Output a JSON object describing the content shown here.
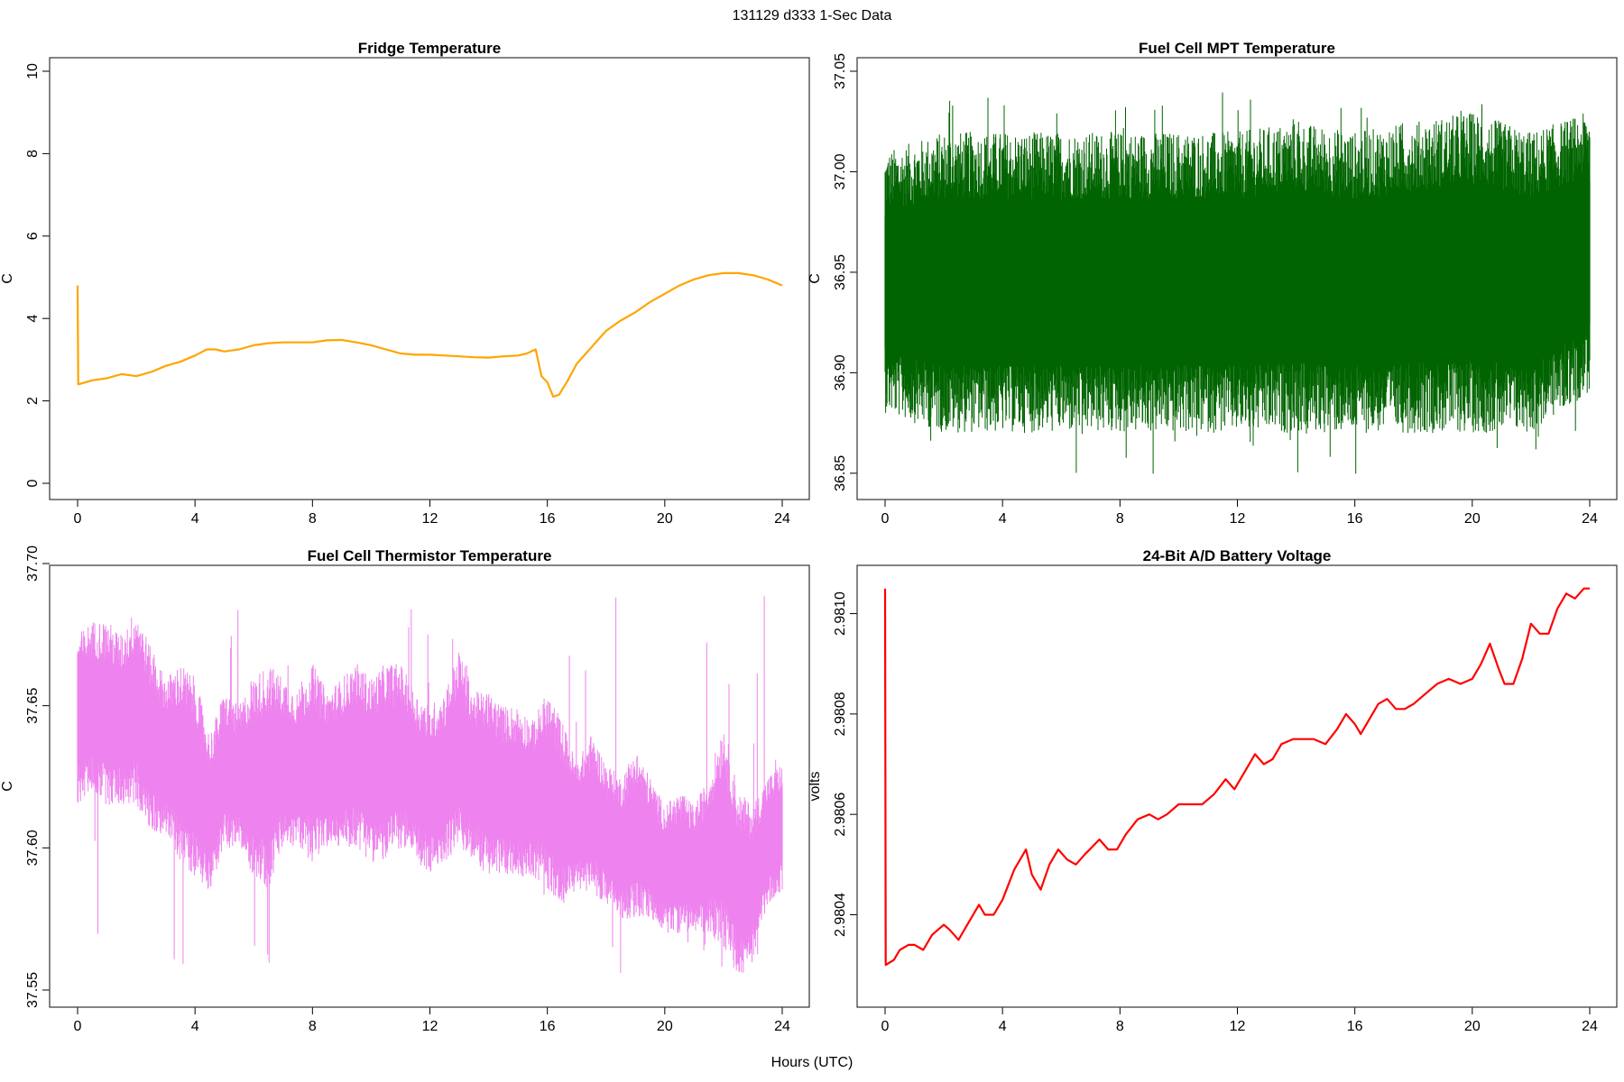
{
  "figure": {
    "title": "131129   d333   1-Sec Data",
    "xlabel": "Hours (UTC)"
  },
  "chart_data": [
    {
      "type": "line",
      "title": "Fridge Temperature",
      "xlabel": "",
      "ylabel": "C",
      "xlim": [
        0,
        24
      ],
      "ylim": [
        0,
        10
      ],
      "xticks": [
        "0",
        "4",
        "8",
        "12",
        "16",
        "20",
        "24"
      ],
      "yticks": [
        "0",
        "2",
        "4",
        "6",
        "8",
        "10"
      ],
      "color": "#ffa500",
      "series": [
        {
          "name": "Fridge Temperature",
          "x": [
            0,
            0.02,
            0.5,
            1.0,
            1.5,
            2.0,
            2.5,
            3.0,
            3.5,
            4.0,
            4.4,
            4.7,
            5.0,
            5.5,
            6.0,
            6.5,
            7.0,
            8.0,
            8.5,
            9.0,
            9.5,
            10.0,
            10.5,
            11.0,
            11.5,
            12.0,
            12.5,
            13.0,
            13.5,
            14.0,
            14.5,
            15.0,
            15.3,
            15.6,
            15.8,
            16.0,
            16.2,
            16.4,
            16.7,
            17.0,
            17.5,
            18.0,
            18.5,
            19.0,
            19.5,
            20.0,
            20.5,
            21.0,
            21.5,
            22.0,
            22.5,
            23.0,
            23.5,
            24.0
          ],
          "values": [
            4.8,
            2.4,
            2.5,
            2.55,
            2.65,
            2.6,
            2.7,
            2.85,
            2.95,
            3.1,
            3.25,
            3.25,
            3.2,
            3.25,
            3.35,
            3.4,
            3.42,
            3.42,
            3.47,
            3.48,
            3.42,
            3.35,
            3.25,
            3.15,
            3.12,
            3.12,
            3.1,
            3.08,
            3.06,
            3.05,
            3.08,
            3.1,
            3.15,
            3.25,
            2.6,
            2.45,
            2.1,
            2.15,
            2.5,
            2.9,
            3.3,
            3.7,
            3.95,
            4.15,
            4.4,
            4.6,
            4.8,
            4.95,
            5.05,
            5.1,
            5.1,
            5.05,
            4.95,
            4.8
          ]
        }
      ]
    },
    {
      "type": "line",
      "title": "Fuel Cell MPT Temperature",
      "xlabel": "",
      "ylabel": "C",
      "xlim": [
        0,
        24
      ],
      "ylim": [
        36.845,
        37.05
      ],
      "xticks": [
        "0",
        "4",
        "8",
        "12",
        "16",
        "20",
        "24"
      ],
      "yticks": [
        "36.85",
        "36.90",
        "36.95",
        "37.00",
        "37.05"
      ],
      "color": "#006400",
      "band": {
        "center": 36.95,
        "inner_half_width": 0.03,
        "outer_half_width": 0.065
      },
      "series": [
        {
          "name": "MPT envelope",
          "x": [
            0,
            2,
            4,
            6,
            8,
            10,
            12,
            14,
            16,
            18,
            20,
            22,
            24
          ],
          "upper": [
            37.01,
            37.02,
            37.02,
            37.02,
            37.02,
            37.02,
            37.02,
            37.025,
            37.02,
            37.025,
            37.03,
            37.02,
            37.03
          ],
          "lower": [
            36.88,
            36.87,
            36.87,
            36.87,
            36.87,
            36.87,
            36.87,
            36.87,
            36.87,
            36.87,
            36.87,
            36.87,
            36.89
          ],
          "spikes_max": 37.045,
          "spikes_min": 36.847
        }
      ]
    },
    {
      "type": "line",
      "title": "Fuel Cell Thermistor Temperature",
      "xlabel": "",
      "ylabel": "C",
      "xlim": [
        0,
        24
      ],
      "ylim": [
        37.55,
        37.7
      ],
      "xticks": [
        "0",
        "4",
        "8",
        "12",
        "16",
        "20",
        "24"
      ],
      "yticks": [
        "37.55",
        "37.60",
        "37.65",
        "37.70"
      ],
      "color": "#ee82ee",
      "series": [
        {
          "name": "Thermistor envelope",
          "x": [
            0,
            0.5,
            1,
            1.5,
            2,
            2.5,
            3,
            3.5,
            4,
            4.5,
            5,
            5.5,
            6,
            6.5,
            7,
            7.5,
            8,
            8.5,
            9,
            9.5,
            10,
            10.5,
            11,
            11.5,
            12,
            12.5,
            13,
            13.5,
            14,
            14.5,
            15,
            15.5,
            16,
            16.5,
            17,
            17.5,
            18,
            18.5,
            19,
            19.5,
            20,
            20.5,
            21,
            21.5,
            22,
            22.5,
            23,
            23.5,
            24
          ],
          "upper": [
            37.675,
            37.68,
            37.68,
            37.675,
            37.685,
            37.67,
            37.66,
            37.665,
            37.66,
            37.64,
            37.655,
            37.65,
            37.66,
            37.665,
            37.66,
            37.655,
            37.665,
            37.655,
            37.66,
            37.665,
            37.66,
            37.665,
            37.665,
            37.655,
            37.65,
            37.655,
            37.67,
            37.655,
            37.655,
            37.65,
            37.65,
            37.645,
            37.655,
            37.645,
            37.63,
            37.64,
            37.63,
            37.625,
            37.635,
            37.625,
            37.615,
            37.62,
            37.615,
            37.625,
            37.645,
            37.62,
            37.615,
            37.625,
            37.63
          ],
          "lower": [
            37.615,
            37.62,
            37.615,
            37.615,
            37.615,
            37.605,
            37.605,
            37.595,
            37.59,
            37.585,
            37.6,
            37.6,
            37.59,
            37.585,
            37.6,
            37.6,
            37.595,
            37.6,
            37.6,
            37.6,
            37.595,
            37.595,
            37.6,
            37.595,
            37.59,
            37.595,
            37.6,
            37.595,
            37.59,
            37.59,
            37.59,
            37.59,
            37.585,
            37.58,
            37.585,
            37.585,
            37.58,
            37.575,
            37.575,
            37.575,
            37.57,
            37.57,
            37.57,
            37.57,
            37.565,
            37.555,
            37.56,
            37.58,
            37.585
          ],
          "spikes_max": 37.697,
          "spikes_min": 37.553
        }
      ]
    },
    {
      "type": "line",
      "title": "24-Bit A/D Battery Voltage",
      "xlabel": "",
      "ylabel": "volts",
      "xlim": [
        0,
        24
      ],
      "ylim": [
        2.98025,
        2.98108
      ],
      "xticks": [
        "0",
        "4",
        "8",
        "12",
        "16",
        "20",
        "24"
      ],
      "yticks": [
        "2.9804",
        "2.9806",
        "2.9808",
        "2.9810"
      ],
      "color": "#ff0000",
      "series": [
        {
          "name": "Battery Voltage",
          "x": [
            0,
            0.02,
            0.3,
            0.5,
            0.8,
            1.0,
            1.3,
            1.6,
            2.0,
            2.2,
            2.5,
            2.8,
            3.2,
            3.4,
            3.7,
            4.0,
            4.4,
            4.8,
            5.0,
            5.3,
            5.6,
            5.9,
            6.2,
            6.5,
            6.8,
            7.3,
            7.6,
            7.9,
            8.2,
            8.6,
            9.0,
            9.3,
            9.6,
            10.0,
            10.4,
            10.8,
            11.2,
            11.6,
            11.9,
            12.2,
            12.6,
            12.9,
            13.2,
            13.5,
            13.9,
            14.3,
            14.6,
            15.0,
            15.4,
            15.7,
            16.0,
            16.2,
            16.5,
            16.8,
            17.1,
            17.4,
            17.7,
            18.0,
            18.4,
            18.8,
            19.2,
            19.6,
            20.0,
            20.3,
            20.6,
            20.9,
            21.1,
            21.4,
            21.7,
            22.0,
            22.3,
            22.6,
            22.9,
            23.2,
            23.5,
            23.8,
            24.0
          ],
          "values": [
            2.98105,
            2.9803,
            2.98031,
            2.98033,
            2.98034,
            2.98034,
            2.98033,
            2.98036,
            2.98038,
            2.98037,
            2.98035,
            2.98038,
            2.98042,
            2.9804,
            2.9804,
            2.98043,
            2.98049,
            2.98053,
            2.98048,
            2.98045,
            2.9805,
            2.98053,
            2.98051,
            2.9805,
            2.98052,
            2.98055,
            2.98053,
            2.98053,
            2.98056,
            2.98059,
            2.9806,
            2.98059,
            2.9806,
            2.98062,
            2.98062,
            2.98062,
            2.98064,
            2.98067,
            2.98065,
            2.98068,
            2.98072,
            2.9807,
            2.98071,
            2.98074,
            2.98075,
            2.98075,
            2.98075,
            2.98074,
            2.98077,
            2.9808,
            2.98078,
            2.98076,
            2.98079,
            2.98082,
            2.98083,
            2.98081,
            2.98081,
            2.98082,
            2.98084,
            2.98086,
            2.98087,
            2.98086,
            2.98087,
            2.9809,
            2.98094,
            2.98089,
            2.98086,
            2.98086,
            2.98091,
            2.98098,
            2.98096,
            2.98096,
            2.98101,
            2.98104,
            2.98103,
            2.98105,
            2.98105
          ]
        }
      ]
    }
  ]
}
